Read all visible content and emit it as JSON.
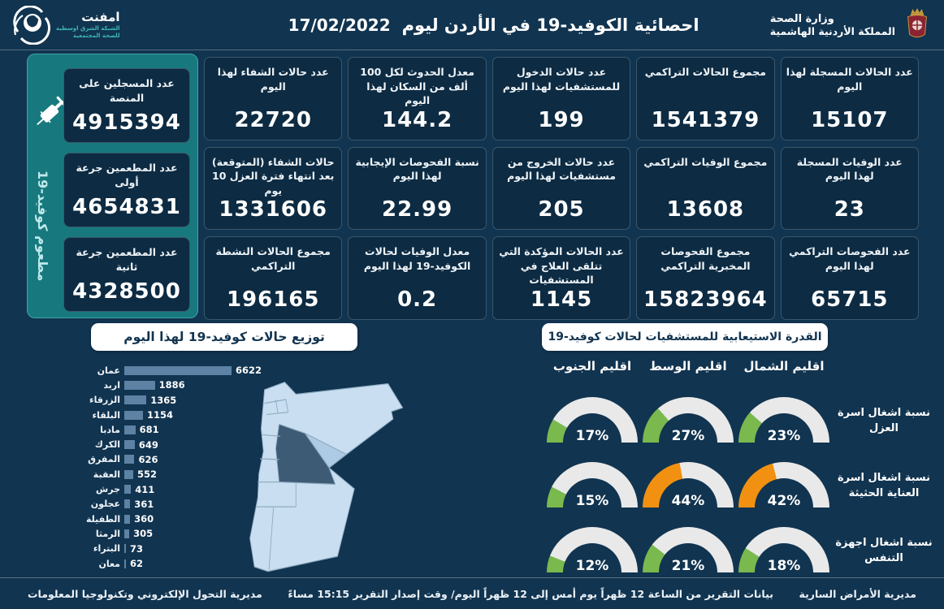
{
  "header": {
    "title": "احصائية الكوفيد-19 في الأردن ليوم",
    "date": "17/02/2022",
    "ministry_line1": "وزارة الصحة",
    "ministry_line2": "المملكة الأردنية الهاشمية",
    "network_name": "امفنت",
    "network_sub1": "الشبكة الشرق اوسطية",
    "network_sub2": "للصحة المجتمعية"
  },
  "vaccination_panel": {
    "side_label": "مطعوم كوفيد-19",
    "cards": [
      {
        "label": "عدد المسجلين على المنصة",
        "value": "4915394"
      },
      {
        "label": "عدد المطعمين جرعة أولى",
        "value": "4654831"
      },
      {
        "label": "عدد المطعمين جرعة ثانية",
        "value": "4328500"
      }
    ]
  },
  "stat_cards": [
    {
      "label": "عدد الحالات المسجلة لهذا اليوم",
      "value": "15107"
    },
    {
      "label": "مجموع الحالات التراكمي",
      "value": "1541379"
    },
    {
      "label": "عدد حالات الدخول للمستشفيات لهذا اليوم",
      "value": "199"
    },
    {
      "label": "معدل الحدوث لكل 100 ألف من السكان لهذا اليوم",
      "value": "144.2"
    },
    {
      "label": "عدد حالات الشفاء لهذا اليوم",
      "value": "22720"
    },
    {
      "label": "عدد الوفيات المسجلة لهذا اليوم",
      "value": "23"
    },
    {
      "label": "مجموع الوفيات التراكمي",
      "value": "13608"
    },
    {
      "label": "عدد حالات الخروج من مستشفيات لهذا اليوم",
      "value": "205"
    },
    {
      "label": "نسبة الفحوصات الإيجابية لهذا اليوم",
      "value": "22.99"
    },
    {
      "label": "حالات الشفاء (المتوقعة) بعد انتهاء فترة العزل 10 يوم",
      "value": "1331606"
    },
    {
      "label": "عدد الفحوصات التراكمي لهذا اليوم",
      "value": "65715"
    },
    {
      "label": "مجموع الفحوصات المخبرية التراكمي",
      "value": "15823964"
    },
    {
      "label": "عدد الحالات المؤكدة التي تتلقى العلاج في المستشفيات",
      "value": "1145"
    },
    {
      "label": "معدل الوفيات لحالات الكوفيد-19 لهذا اليوم",
      "value": "0.2"
    },
    {
      "label": "مجموع الحالات النشطة التراكمي",
      "value": "196165"
    }
  ],
  "chart_data": [
    {
      "type": "bar",
      "title": "توزيع حالات كوفيد-19 لهذا اليوم",
      "orientation": "horizontal",
      "categories": [
        "عمان",
        "اربد",
        "الزرقاء",
        "البلقاء",
        "مادبا",
        "الكرك",
        "المفرق",
        "العقبة",
        "جرش",
        "عجلون",
        "الطفيلة",
        "الرمثا",
        "البتراء",
        "معان"
      ],
      "values": [
        6622,
        1886,
        1365,
        1154,
        681,
        649,
        626,
        552,
        411,
        361,
        360,
        305,
        73,
        62
      ],
      "xlim": [
        0,
        6622
      ],
      "bar_color": "#5d82a3",
      "value_labels": true
    },
    {
      "type": "gauge-grid",
      "title": "القدرة الاستيعابية للمستشفيات لحالات كوفيد-19",
      "columns": [
        "اقليم الشمال",
        "اقليم الوسط",
        "اقليم الجنوب"
      ],
      "rows": [
        {
          "label": "نسبة اشغال اسرة العزل",
          "values": [
            23,
            27,
            17
          ],
          "colors": [
            "green",
            "green",
            "green"
          ]
        },
        {
          "label": "نسبة اشغال اسرة العناية الحثيثة",
          "values": [
            42,
            44,
            15
          ],
          "colors": [
            "orange",
            "orange",
            "green"
          ]
        },
        {
          "label": "نسبة اشغال اجهزة التنفس",
          "values": [
            18,
            21,
            12
          ],
          "colors": [
            "green",
            "green",
            "green"
          ]
        }
      ],
      "green": "#79b94e",
      "orange": "#f29111",
      "track": "#e9e9e9",
      "max": 100
    },
    {
      "type": "choropleth",
      "region": "خريطة محافظات الأردن",
      "base_fill": "#c9dff1",
      "highlighted": [
        {
          "name": "عمان",
          "fill": "#3e5b76"
        },
        {
          "name": "الزرقاء",
          "fill": "#aecbe6"
        }
      ]
    }
  ],
  "colors": {
    "background": "#113450",
    "card_bg": "#0d2b42",
    "teal_panel": "#17797e",
    "pill_bg": "#ffffff",
    "pill_text": "#113450",
    "bar": "#5d82a3",
    "gauge_green": "#79b94e",
    "gauge_orange": "#f29111",
    "gauge_track": "#e9e9e9"
  },
  "footer": {
    "right": "مديرية الأمراض السارية",
    "center": "بيانات التقرير من الساعة 12 ظهراً يوم أمس إلى 12 ظهراً اليوم/ وقت إصدار التقرير 15:15 مساءً",
    "left": "مديرية التحول الإلكتروني وتكنولوجيا المعلومات"
  }
}
